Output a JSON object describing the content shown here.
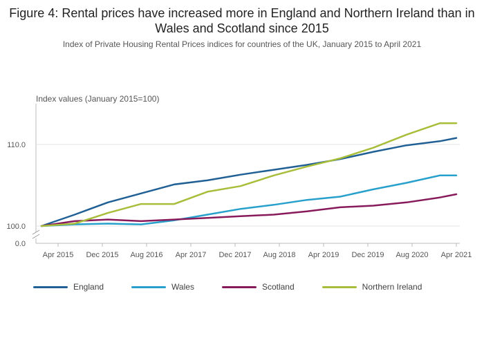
{
  "chart_data": {
    "type": "line",
    "title": "Figure 4: Rental prices have increased more in England and Northern Ireland than in Wales and Scotland since 2015",
    "subtitle": "Index of Private Housing Rental Prices indices for countries of the UK, January 2015 to April 2021",
    "ylabel": "Index values (January 2015=100)",
    "xlabel": "",
    "x_start": "2015-01",
    "x_end": "2021-04",
    "x_ticks": [
      {
        "date": "2015-04",
        "label": "Apr 2015"
      },
      {
        "date": "2015-12",
        "label": "Dec 2015"
      },
      {
        "date": "2016-08",
        "label": "Aug 2016"
      },
      {
        "date": "2017-04",
        "label": "Apr 2017"
      },
      {
        "date": "2017-12",
        "label": "Dec 2017"
      },
      {
        "date": "2018-08",
        "label": "Aug 2018"
      },
      {
        "date": "2019-04",
        "label": "Apr 2019"
      },
      {
        "date": "2019-12",
        "label": "Dec 2019"
      },
      {
        "date": "2020-08",
        "label": "Aug 2020"
      },
      {
        "date": "2021-04",
        "label": "Apr 2021"
      }
    ],
    "y_ticks": [
      {
        "value": 110,
        "label": "110.0"
      },
      {
        "value": 100,
        "label": "100.0"
      },
      {
        "value": 0,
        "label": "0.0"
      }
    ],
    "ylim": [
      0,
      115
    ],
    "axis_break": true,
    "legend_position": "bottom",
    "grid": true,
    "series": [
      {
        "name": "England",
        "color": "#206095",
        "points": [
          [
            "2015-01",
            100
          ],
          [
            "2015-07",
            101.4
          ],
          [
            "2016-01",
            102.9
          ],
          [
            "2016-07",
            104.0
          ],
          [
            "2017-01",
            105.1
          ],
          [
            "2017-07",
            105.6
          ],
          [
            "2018-01",
            106.3
          ],
          [
            "2018-07",
            106.9
          ],
          [
            "2019-01",
            107.5
          ],
          [
            "2019-07",
            108.2
          ],
          [
            "2020-01",
            109.1
          ],
          [
            "2020-07",
            109.9
          ],
          [
            "2021-01",
            110.4
          ],
          [
            "2021-04",
            110.8
          ]
        ]
      },
      {
        "name": "Wales",
        "color": "#27a0cc",
        "points": [
          [
            "2015-01",
            100
          ],
          [
            "2015-07",
            100.2
          ],
          [
            "2016-01",
            100.3
          ],
          [
            "2016-07",
            100.2
          ],
          [
            "2017-01",
            100.7
          ],
          [
            "2017-07",
            101.4
          ],
          [
            "2018-01",
            102.1
          ],
          [
            "2018-07",
            102.6
          ],
          [
            "2019-01",
            103.2
          ],
          [
            "2019-07",
            103.6
          ],
          [
            "2020-01",
            104.5
          ],
          [
            "2020-07",
            105.3
          ],
          [
            "2021-01",
            106.2
          ],
          [
            "2021-04",
            106.2
          ]
        ]
      },
      {
        "name": "Scotland",
        "color": "#871a5b",
        "points": [
          [
            "2015-01",
            100
          ],
          [
            "2015-07",
            100.6
          ],
          [
            "2016-01",
            100.8
          ],
          [
            "2016-07",
            100.6
          ],
          [
            "2017-01",
            100.8
          ],
          [
            "2017-07",
            101.0
          ],
          [
            "2018-01",
            101.2
          ],
          [
            "2018-07",
            101.4
          ],
          [
            "2019-01",
            101.8
          ],
          [
            "2019-07",
            102.3
          ],
          [
            "2020-01",
            102.5
          ],
          [
            "2020-07",
            102.9
          ],
          [
            "2021-01",
            103.5
          ],
          [
            "2021-04",
            103.9
          ]
        ]
      },
      {
        "name": "Northern Ireland",
        "color": "#a8bd3a",
        "points": [
          [
            "2015-01",
            100
          ],
          [
            "2015-07",
            100.3
          ],
          [
            "2016-01",
            101.6
          ],
          [
            "2016-07",
            102.7
          ],
          [
            "2017-01",
            102.7
          ],
          [
            "2017-07",
            104.2
          ],
          [
            "2018-01",
            104.9
          ],
          [
            "2018-07",
            106.2
          ],
          [
            "2019-01",
            107.3
          ],
          [
            "2019-07",
            108.3
          ],
          [
            "2020-01",
            109.6
          ],
          [
            "2020-07",
            111.2
          ],
          [
            "2021-01",
            112.6
          ],
          [
            "2021-04",
            112.6
          ]
        ]
      }
    ]
  }
}
